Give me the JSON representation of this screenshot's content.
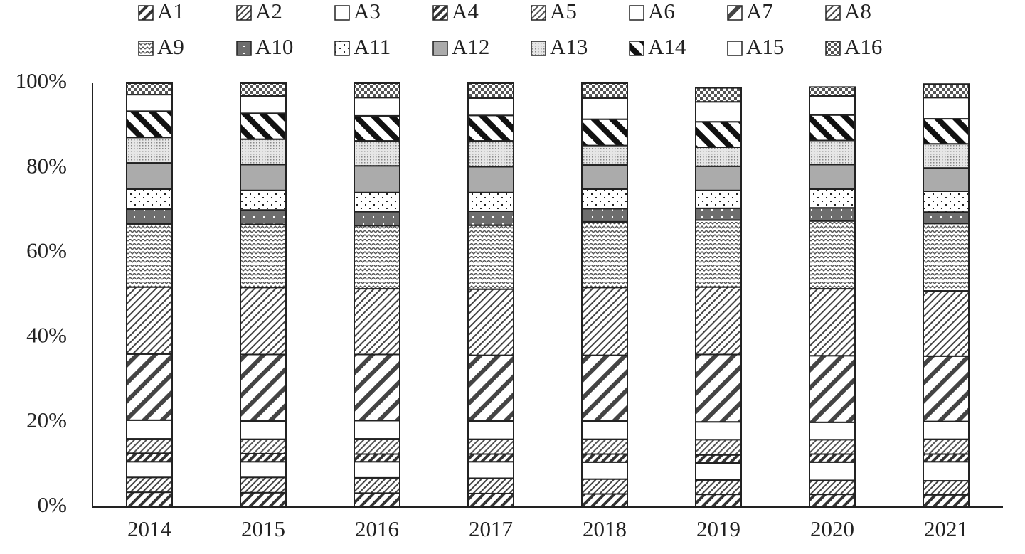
{
  "chart_data": {
    "type": "stacked-bar",
    "categories": [
      "2014",
      "2015",
      "2016",
      "2017",
      "2018",
      "2019",
      "2020",
      "2021"
    ],
    "ylim": [
      0,
      100
    ],
    "yticks": [
      {
        "value": 0,
        "label": "0%"
      },
      {
        "value": 20,
        "label": "20%"
      },
      {
        "value": 40,
        "label": "40%"
      },
      {
        "value": 60,
        "label": "60%"
      },
      {
        "value": 80,
        "label": "80%"
      },
      {
        "value": 100,
        "label": "100%"
      }
    ],
    "series": [
      {
        "name": "A1",
        "color": "#ffffff",
        "values": [
          3.5,
          3.4,
          3.3,
          3.2,
          3.1,
          3.0,
          3.0,
          2.9
        ]
      },
      {
        "name": "A2",
        "color": "#ffffff",
        "values": [
          3.5,
          3.6,
          3.6,
          3.6,
          3.5,
          3.4,
          3.3,
          3.3
        ]
      },
      {
        "name": "A3",
        "color": "#ffffff",
        "values": [
          3.7,
          3.7,
          3.8,
          3.9,
          4.0,
          4.0,
          4.3,
          4.5
        ]
      },
      {
        "name": "A4",
        "color": "#ffffff",
        "values": [
          2.0,
          1.9,
          1.8,
          1.8,
          1.9,
          1.9,
          1.9,
          1.8
        ]
      },
      {
        "name": "A5",
        "color": "#ffffff",
        "values": [
          3.4,
          3.4,
          3.6,
          3.5,
          3.5,
          3.6,
          3.4,
          3.5
        ]
      },
      {
        "name": "A6",
        "color": "#ffffff",
        "values": [
          4.4,
          4.3,
          4.3,
          4.3,
          4.3,
          4.2,
          4.1,
          4.2
        ]
      },
      {
        "name": "A7",
        "color": "#ffffff",
        "values": [
          15.6,
          15.7,
          15.6,
          15.5,
          15.5,
          15.9,
          15.7,
          15.4
        ]
      },
      {
        "name": "A8",
        "color": "#ffffff",
        "values": [
          15.8,
          15.8,
          15.5,
          15.6,
          16.0,
          15.9,
          15.8,
          15.4
        ]
      },
      {
        "name": "A9",
        "color": "#ffffff",
        "values": [
          14.9,
          14.9,
          14.9,
          15.1,
          15.5,
          15.8,
          16.0,
          15.9
        ]
      },
      {
        "name": "A10",
        "color": "#6e6e6e",
        "values": [
          3.5,
          3.4,
          3.3,
          3.3,
          3.1,
          2.8,
          3.1,
          2.7
        ]
      },
      {
        "name": "A11",
        "color": "#ffffff",
        "values": [
          4.7,
          4.6,
          4.5,
          4.4,
          4.6,
          4.2,
          4.4,
          4.9
        ]
      },
      {
        "name": "A12",
        "color": "#ababab",
        "values": [
          6.2,
          6.1,
          6.3,
          6.1,
          5.7,
          5.7,
          5.8,
          5.5
        ]
      },
      {
        "name": "A13",
        "color": "#e6e6e6",
        "values": [
          6.0,
          6.0,
          5.9,
          6.1,
          4.6,
          4.5,
          5.7,
          5.7
        ]
      },
      {
        "name": "A14",
        "color": "#ffffff",
        "values": [
          6.2,
          6.1,
          5.9,
          6.0,
          6.2,
          6.0,
          6.0,
          5.9
        ]
      },
      {
        "name": "A15",
        "color": "#ffffff",
        "values": [
          3.9,
          4.1,
          4.3,
          4.1,
          5.0,
          4.7,
          4.5,
          5.0
        ]
      },
      {
        "name": "A16",
        "color": "#ffffff",
        "values": [
          2.7,
          3.0,
          3.4,
          3.5,
          3.5,
          3.3,
          2.1,
          3.2
        ]
      }
    ]
  }
}
